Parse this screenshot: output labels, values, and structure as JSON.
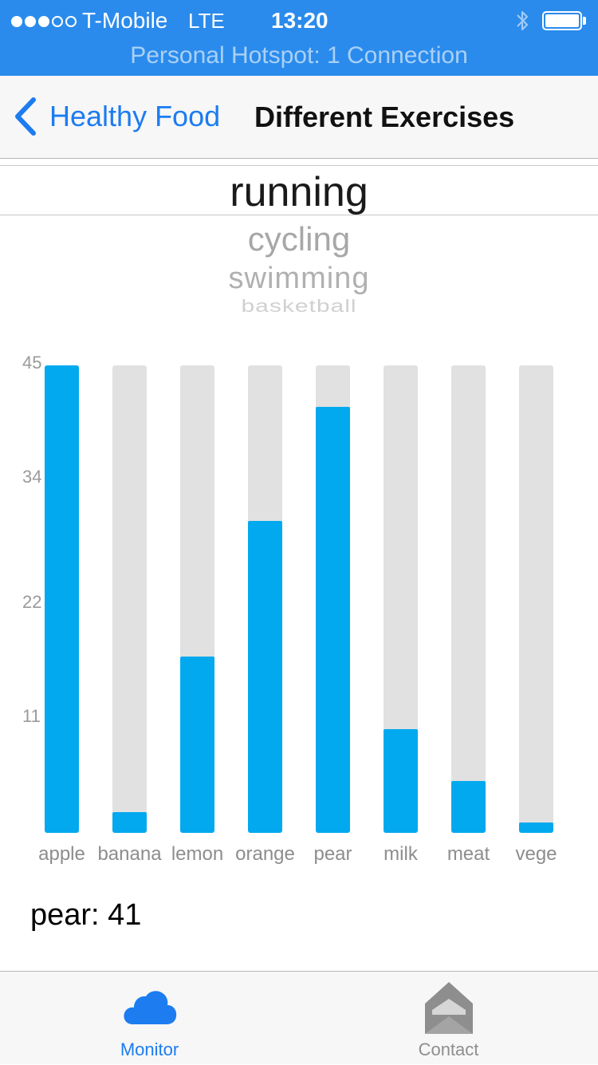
{
  "status_bar": {
    "carrier": "T-Mobile",
    "network": "LTE",
    "time": "13:20",
    "hotspot": "Personal Hotspot: 1 Connection",
    "color": "#2a8bec"
  },
  "nav": {
    "back_label": "Healthy Food",
    "title": "Different Exercises"
  },
  "picker": {
    "items": [
      "running",
      "cycling",
      "swimming",
      "basketball"
    ],
    "selected": "running"
  },
  "chart_data": {
    "type": "bar",
    "categories": [
      "apple",
      "banana",
      "lemon",
      "orange",
      "pear",
      "milk",
      "meat",
      "vege"
    ],
    "values": [
      45,
      2,
      17,
      30,
      41,
      10,
      5,
      1
    ],
    "yticks": [
      "45",
      "34",
      "22",
      "11"
    ],
    "ylim": [
      0,
      45
    ],
    "bar_color": "#02a9ef",
    "track_color": "#e1e1e1"
  },
  "readout": "pear: 41",
  "tabs": [
    {
      "label": "Monitor",
      "icon": "cloud-icon",
      "active": true,
      "color": "#1c7cf0"
    },
    {
      "label": "Contact",
      "icon": "envelope-icon",
      "active": false,
      "color": "#8e8e8e"
    }
  ]
}
